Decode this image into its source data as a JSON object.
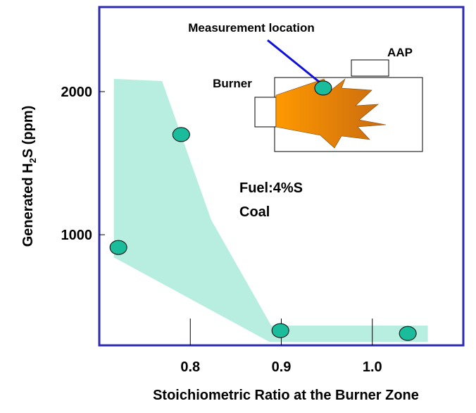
{
  "chart_data": {
    "type": "scatter",
    "x_label": "Stoichiometric Ratio at the Burner Zone",
    "y_label_parts": [
      "Generated H",
      "2",
      "S  (ppm)"
    ],
    "xlim": [
      0.7,
      1.1
    ],
    "ylim": [
      227,
      2591
    ],
    "xticks": [
      0.8,
      0.9,
      {
        "value": 1.0,
        "label": "1.0"
      }
    ],
    "yticks": [
      1000,
      2000
    ],
    "series": [
      {
        "color": "#1abc9c",
        "x": [
          0.721,
          0.79,
          0.946,
          0.899,
          1.039
        ],
        "values": [
          911,
          1700,
          2025,
          330,
          310
        ]
      }
    ],
    "band": {
      "color": "#b8eee0",
      "x": [
        0.716,
        0.769,
        0.823,
        0.889,
        1.061,
        1.061,
        0.887,
        0.716
      ],
      "y": [
        2089,
        2074,
        1103,
        365,
        365,
        251,
        251,
        842
      ]
    },
    "annotations": [
      "Measurement location",
      "AAP",
      "Burner",
      "Fuel:4%S",
      "Coal"
    ]
  }
}
